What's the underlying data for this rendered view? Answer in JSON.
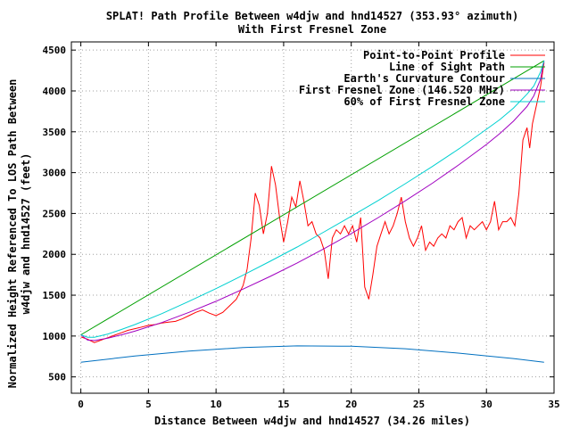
{
  "chart_data": {
    "type": "line",
    "title": "SPLAT! Path Profile Between w4djw and hnd14527 (353.93° azimuth)",
    "subtitle": "With First Fresnel Zone",
    "xlabel": "Distance Between w4djw and hnd14527 (34.26 miles)",
    "ylabel_line1": "Normalized Height Referenced To LOS Path Between",
    "ylabel_line2": "w4djw and hnd14527 (feet)",
    "xlim": [
      -0.7,
      35
    ],
    "ylim": [
      300,
      4600
    ],
    "x_ticks": [
      0,
      5,
      10,
      15,
      20,
      25,
      30,
      35
    ],
    "y_ticks": [
      500,
      1000,
      1500,
      2000,
      2500,
      3000,
      3500,
      4000,
      4500
    ],
    "grid": true,
    "legend_position": "top-right",
    "series": [
      {
        "name": "Point-to-Point Profile",
        "color": "#ff0000",
        "x": [
          0,
          0.5,
          1,
          1.5,
          2,
          2.5,
          3,
          3.5,
          4,
          4.5,
          5,
          5.5,
          6,
          6.5,
          7,
          7.5,
          8,
          8.5,
          9,
          9.5,
          10,
          10.5,
          11,
          11.5,
          12,
          12.3,
          12.6,
          12.9,
          13.2,
          13.5,
          13.8,
          14.1,
          14.4,
          14.7,
          15,
          15.3,
          15.6,
          15.9,
          16.2,
          16.5,
          16.8,
          17.1,
          17.4,
          17.7,
          18,
          18.3,
          18.6,
          18.9,
          19.2,
          19.5,
          19.8,
          20.1,
          20.4,
          20.7,
          21,
          21.3,
          21.6,
          21.9,
          22.2,
          22.5,
          22.8,
          23.1,
          23.4,
          23.7,
          24,
          24.3,
          24.6,
          24.9,
          25.2,
          25.5,
          25.8,
          26.1,
          26.4,
          26.7,
          27,
          27.3,
          27.6,
          27.9,
          28.2,
          28.5,
          28.8,
          29.1,
          29.4,
          29.7,
          30,
          30.3,
          30.6,
          30.9,
          31.2,
          31.5,
          31.8,
          32.1,
          32.4,
          32.7,
          33,
          33.2,
          33.4,
          33.6,
          33.8,
          34,
          34.26
        ],
        "y": [
          990,
          960,
          920,
          950,
          980,
          1010,
          1040,
          1070,
          1090,
          1110,
          1130,
          1140,
          1160,
          1170,
          1180,
          1210,
          1250,
          1290,
          1320,
          1280,
          1250,
          1290,
          1370,
          1450,
          1620,
          1820,
          2200,
          2750,
          2600,
          2250,
          2500,
          3080,
          2850,
          2450,
          2150,
          2400,
          2700,
          2580,
          2900,
          2650,
          2350,
          2400,
          2250,
          2200,
          2050,
          1700,
          2200,
          2300,
          2250,
          2350,
          2250,
          2350,
          2150,
          2450,
          1600,
          1450,
          1750,
          2100,
          2250,
          2400,
          2250,
          2350,
          2500,
          2700,
          2400,
          2200,
          2100,
          2200,
          2350,
          2050,
          2150,
          2100,
          2200,
          2250,
          2200,
          2350,
          2300,
          2400,
          2450,
          2200,
          2350,
          2300,
          2350,
          2400,
          2300,
          2400,
          2650,
          2300,
          2400,
          2400,
          2450,
          2350,
          2750,
          3400,
          3550,
          3300,
          3600,
          3750,
          3900,
          4050,
          4350
        ]
      },
      {
        "name": "Line of Sight Path",
        "color": "#00a000",
        "x": [
          0,
          34.26
        ],
        "y": [
          1015,
          4370
        ]
      },
      {
        "name": "Earth's Curvature Contour",
        "color": "#0070c0",
        "x": [
          0,
          4,
          8,
          12,
          16,
          20,
          24,
          28,
          32,
          34.26
        ],
        "y": [
          680,
          755,
          815,
          860,
          880,
          875,
          845,
          790,
          725,
          680
        ]
      },
      {
        "name": "First Fresnel Zone (146.520 MHz)",
        "color": "#a000c0",
        "x": [
          0,
          0.5,
          1,
          2,
          3,
          4,
          6,
          8,
          10,
          12,
          14,
          16,
          18,
          20,
          22,
          24,
          26,
          28,
          30,
          31,
          32,
          33,
          33.5,
          34,
          34.26
        ],
        "y": [
          1015,
          950,
          945,
          975,
          1015,
          1060,
          1165,
          1290,
          1425,
          1575,
          1730,
          1895,
          2070,
          2255,
          2450,
          2655,
          2870,
          3100,
          3345,
          3480,
          3630,
          3810,
          3940,
          4140,
          4370
        ]
      },
      {
        "name": "60% of First Fresnel Zone",
        "color": "#00d0d0",
        "x": [
          0,
          0.5,
          1,
          2,
          3,
          4,
          6,
          8,
          10,
          12,
          14,
          16,
          18,
          20,
          22,
          24,
          26,
          28,
          30,
          31,
          32,
          33,
          33.5,
          34,
          34.26
        ],
        "y": [
          1015,
          985,
          985,
          1025,
          1080,
          1140,
          1275,
          1425,
          1580,
          1745,
          1915,
          2090,
          2275,
          2465,
          2660,
          2865,
          3075,
          3295,
          3530,
          3650,
          3790,
          3960,
          4060,
          4230,
          4370
        ]
      }
    ]
  }
}
